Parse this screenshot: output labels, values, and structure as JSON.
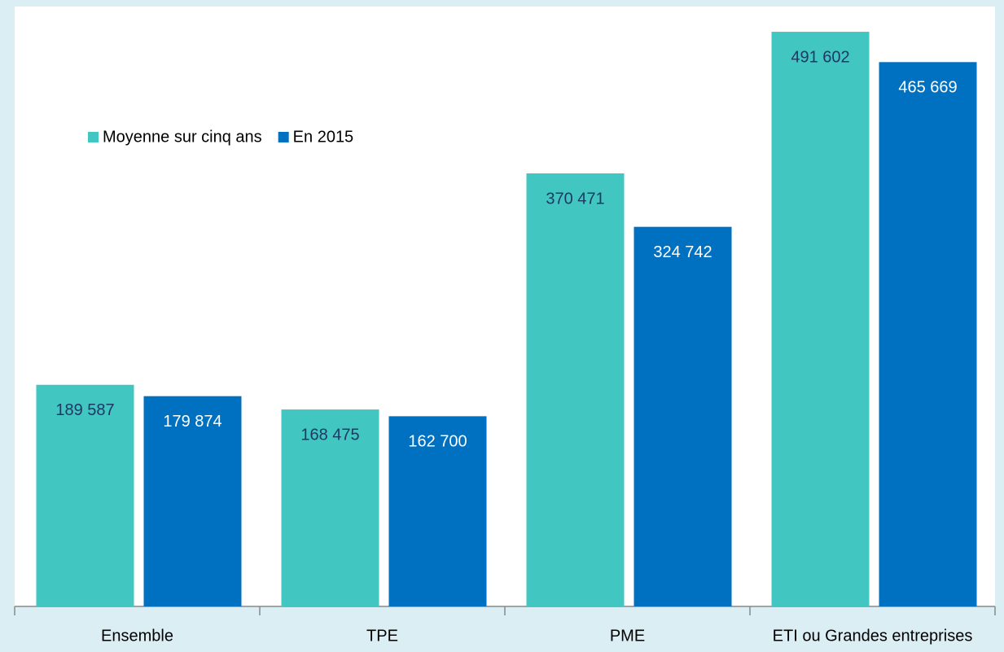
{
  "chart_data": {
    "type": "bar",
    "categories": [
      "Ensemble",
      "TPE",
      "PME",
      "ETI ou Grandes entreprises"
    ],
    "series": [
      {
        "name": "Moyenne sur cinq ans",
        "color": "#42c6c2",
        "values": [
          189587,
          168475,
          370471,
          491602
        ],
        "value_labels": [
          "189 587",
          "168 475",
          "370 471",
          "491 602"
        ]
      },
      {
        "name": "En 2015",
        "color": "#0070c0",
        "values": [
          179874,
          162700,
          324742,
          465669
        ],
        "value_labels": [
          "179 874",
          "162 700",
          "324 742",
          "465 669"
        ]
      }
    ],
    "ylim": [
      0,
      500000
    ],
    "legend": "top-left"
  }
}
